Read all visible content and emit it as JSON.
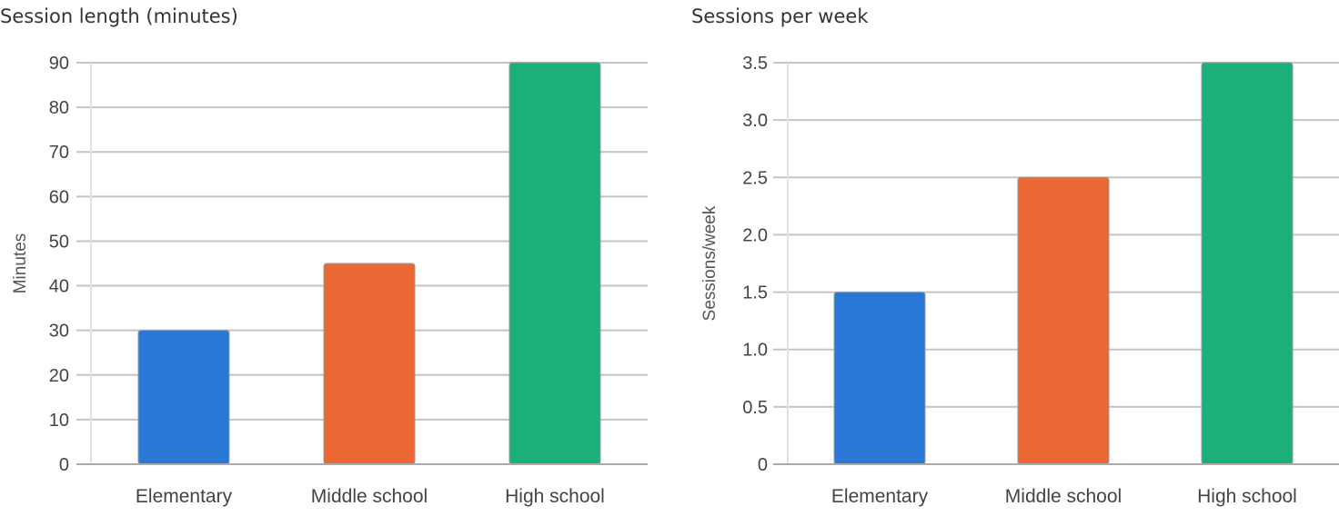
{
  "chart_data": [
    {
      "type": "bar",
      "title": "Session length (minutes)",
      "xlabel": "",
      "ylabel": "Minutes",
      "categories": [
        "Elementary",
        "Middle school",
        "High school"
      ],
      "values": [
        30,
        45,
        90
      ],
      "colors": [
        "#2a78d6",
        "#eb6834",
        "#1bb07a"
      ],
      "ylim": [
        0,
        90
      ],
      "yticks": [
        0,
        10,
        20,
        30,
        40,
        50,
        60,
        70,
        80,
        90
      ],
      "ytick_labels": [
        "0",
        "10",
        "20",
        "30",
        "40",
        "50",
        "60",
        "70",
        "80",
        "90"
      ],
      "grid": true,
      "legend": "none"
    },
    {
      "type": "bar",
      "title": "Sessions per week",
      "xlabel": "",
      "ylabel": "Sessions/week",
      "categories": [
        "Elementary",
        "Middle school",
        "High school"
      ],
      "values": [
        1.5,
        2.5,
        3.5
      ],
      "colors": [
        "#2a78d6",
        "#eb6834",
        "#1bb07a"
      ],
      "ylim": [
        0,
        3.5
      ],
      "yticks": [
        0,
        0.5,
        1.0,
        1.5,
        2.0,
        2.5,
        3.0,
        3.5
      ],
      "ytick_labels": [
        "0",
        "0.5",
        "1.0",
        "1.5",
        "2.0",
        "2.5",
        "3.0",
        "3.5"
      ],
      "grid": true,
      "legend": "none"
    }
  ]
}
